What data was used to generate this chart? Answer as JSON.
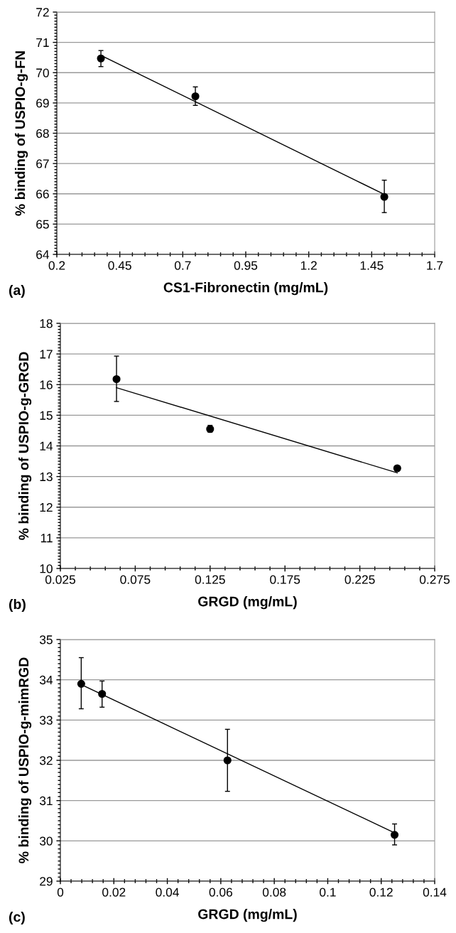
{
  "chart_data": [
    {
      "type": "scatter",
      "xlabel": "CS1-Fibronectin (mg/mL)",
      "ylabel": "% binding of USPIO-g-FN",
      "annotations": [
        "(a)"
      ],
      "xlim": [
        0.2,
        1.7
      ],
      "xticks": [
        0.2,
        0.45,
        0.7,
        0.95,
        1.2,
        1.45,
        1.7
      ],
      "ylim": [
        64,
        72
      ],
      "yticks": [
        64,
        65,
        66,
        67,
        68,
        69,
        70,
        71,
        72
      ],
      "grid": "y",
      "marker": "circle",
      "series": [
        {
          "color": "#000000",
          "x": [
            0.375,
            0.75,
            1.5
          ],
          "values": [
            70.47,
            69.22,
            65.9
          ],
          "errors": [
            [
              70.2,
              70.73
            ],
            [
              68.92,
              69.53
            ],
            [
              65.38,
              66.45
            ]
          ]
        },
        {
          "type": "line",
          "color": "#000000",
          "marker": "none",
          "x": [
            0.375,
            1.5
          ],
          "values": [
            70.57,
            65.98
          ]
        }
      ]
    },
    {
      "type": "scatter",
      "xlabel": "GRGD (mg/mL)",
      "ylabel": "% binding of USPIO-g-GRGD",
      "annotations": [
        "(b)"
      ],
      "xlim": [
        0.025,
        0.275
      ],
      "xticks": [
        0.025,
        0.075,
        0.125,
        0.175,
        0.225,
        0.275
      ],
      "ylim": [
        10,
        18
      ],
      "yticks": [
        10,
        11,
        12,
        13,
        14,
        15,
        16,
        17,
        18
      ],
      "grid": "y",
      "marker": "circle",
      "series": [
        {
          "color": "#000000",
          "x": [
            0.0625,
            0.125,
            0.25
          ],
          "values": [
            16.18,
            14.55,
            13.27
          ],
          "errors": [
            [
              15.45,
              16.93
            ],
            [
              14.45,
              14.67
            ],
            [
              13.22,
              13.32
            ]
          ]
        },
        {
          "type": "line",
          "color": "#000000",
          "marker": "none",
          "x": [
            0.0625,
            0.25
          ],
          "values": [
            15.9,
            13.12
          ]
        }
      ]
    },
    {
      "type": "scatter",
      "xlabel": "GRGD (mg/mL)",
      "ylabel": "% binding of USPIO-g-mimRGD",
      "annotations": [
        "(c)"
      ],
      "xlim": [
        0,
        0.14
      ],
      "xticks": [
        0,
        0.02,
        0.04,
        0.06,
        0.08,
        0.1,
        0.12,
        0.14
      ],
      "ylim": [
        29,
        35
      ],
      "yticks": [
        29,
        30,
        31,
        32,
        33,
        34,
        35
      ],
      "grid": "y",
      "marker": "circle",
      "series": [
        {
          "color": "#000000",
          "x": [
            0.0078,
            0.0156,
            0.0625,
            0.125
          ],
          "values": [
            33.9,
            33.65,
            32.0,
            30.15
          ],
          "errors": [
            [
              33.28,
              34.55
            ],
            [
              33.32,
              33.97
            ],
            [
              31.23,
              32.77
            ],
            [
              29.9,
              30.42
            ]
          ]
        },
        {
          "type": "line",
          "color": "#000000",
          "marker": "none",
          "x": [
            0.0078,
            0.125
          ],
          "values": [
            33.88,
            30.2
          ]
        }
      ]
    }
  ]
}
